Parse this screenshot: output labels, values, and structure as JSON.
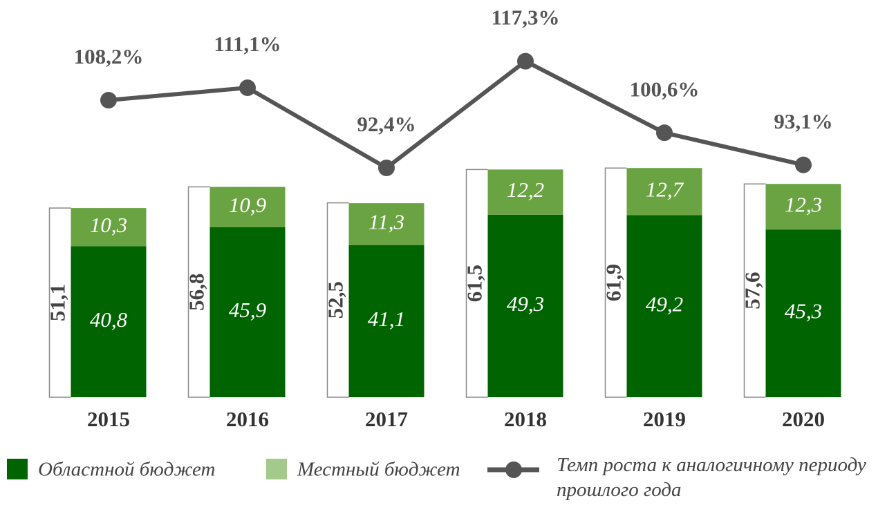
{
  "chart_data": {
    "type": "bar",
    "stacked": true,
    "categories": [
      "2015",
      "2016",
      "2017",
      "2018",
      "2019",
      "2020"
    ],
    "series": [
      {
        "name": "Областной бюджет",
        "color": "#006400",
        "values": [
          40.8,
          45.9,
          41.1,
          49.3,
          49.2,
          45.3
        ],
        "value_labels": [
          "40,8",
          "45,9",
          "41,1",
          "49,3",
          "49,2",
          "45,3"
        ]
      },
      {
        "name": "Местный бюджет",
        "color": "#6aa342",
        "legend_color": "#a3c98b",
        "values": [
          10.3,
          10.9,
          11.3,
          12.2,
          12.7,
          12.3
        ],
        "value_labels": [
          "10,3",
          "10,9",
          "11,3",
          "12,2",
          "12,7",
          "12,3"
        ]
      },
      {
        "name": "Темп роста к аналогичному периоду прошлого года",
        "type": "line",
        "color": "#555555",
        "values": [
          108.2,
          111.1,
          92.4,
          117.3,
          100.6,
          93.1
        ],
        "value_labels": [
          "108,2%",
          "111,1%",
          "92,4%",
          "117,3%",
          "100,6%",
          "93,1%"
        ]
      }
    ],
    "totals": {
      "values": [
        51.1,
        56.8,
        52.5,
        61.5,
        61.9,
        57.6
      ],
      "value_labels": [
        "51,1",
        "56,8",
        "52,5",
        "61,5",
        "61,9",
        "57,6"
      ]
    }
  }
}
